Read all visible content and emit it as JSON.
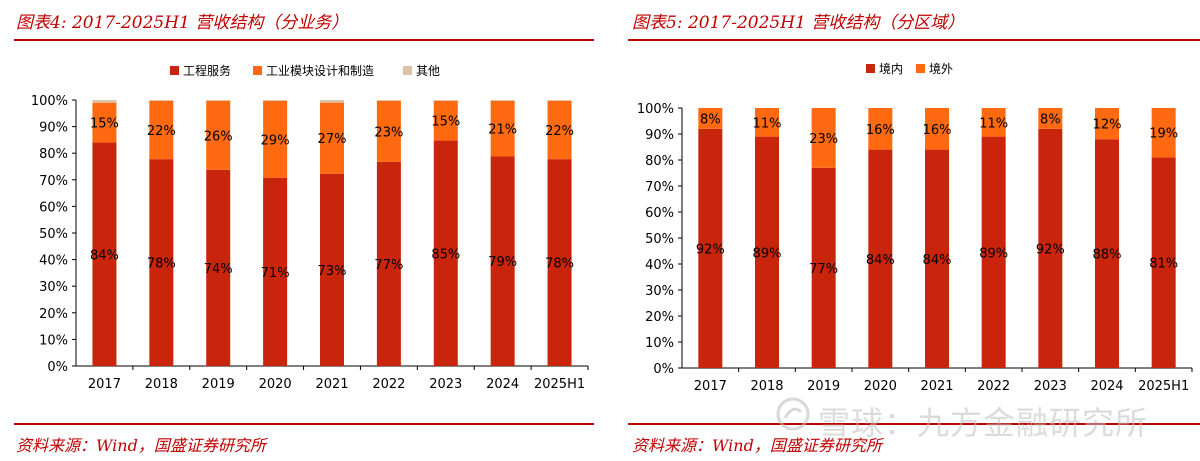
{
  "colors": {
    "accent": "#c00000",
    "dark_red": "#c8250c",
    "orange": "#ff6a10",
    "beige": "#d9c2a8"
  },
  "panels": [
    {
      "title": "图表4:  2017-2025H1 营收结构（分业务）",
      "source": "资料来源：Wind，国盛证券研究所"
    },
    {
      "title": "图表5:  2017-2025H1 营收结构（分区域）",
      "source": "资料来源：Wind，国盛证券研究所"
    }
  ],
  "watermark": {
    "text": "雪球：九方金融研究所",
    "logo": "snowball-logo"
  },
  "chart_data": [
    {
      "type": "bar",
      "stacked": "percent",
      "categories": [
        "2017",
        "2018",
        "2019",
        "2020",
        "2021",
        "2022",
        "2023",
        "2024",
        "2025H1"
      ],
      "yticks": [
        "0%",
        "10%",
        "20%",
        "30%",
        "40%",
        "50%",
        "60%",
        "70%",
        "80%",
        "90%",
        "100%"
      ],
      "ylim": [
        0,
        100
      ],
      "legend_position": "top",
      "series": [
        {
          "name": "工程服务",
          "color": "#c8250c",
          "values": [
            84,
            78,
            74,
            71,
            73,
            77,
            85,
            79,
            78
          ],
          "labels": [
            "84%",
            "78%",
            "74%",
            "71%",
            "73%",
            "77%",
            "85%",
            "79%",
            "78%"
          ]
        },
        {
          "name": "工业模块设计和制造",
          "color": "#ff6a10",
          "values": [
            15,
            22,
            26,
            29,
            27,
            23,
            15,
            21,
            22
          ],
          "labels": [
            "15%",
            "22%",
            "26%",
            "29%",
            "27%",
            "23%",
            "15%",
            "21%",
            "22%"
          ]
        },
        {
          "name": "其他",
          "color": "#d9c2a8",
          "values": [
            1,
            0.3,
            0.3,
            0.3,
            1,
            0.3,
            0.3,
            0.3,
            0.3
          ],
          "labels": []
        }
      ]
    },
    {
      "type": "bar",
      "stacked": "percent",
      "categories": [
        "2017",
        "2018",
        "2019",
        "2020",
        "2021",
        "2022",
        "2023",
        "2024",
        "2025H1"
      ],
      "yticks": [
        "0%",
        "10%",
        "20%",
        "30%",
        "40%",
        "50%",
        "60%",
        "70%",
        "80%",
        "90%",
        "100%"
      ],
      "ylim": [
        0,
        100
      ],
      "legend_position": "top",
      "series": [
        {
          "name": "境内",
          "color": "#c8250c",
          "values": [
            92,
            89,
            77,
            84,
            84,
            89,
            92,
            88,
            81
          ],
          "labels": [
            "92%",
            "89%",
            "77%",
            "84%",
            "84%",
            "89%",
            "92%",
            "88%",
            "81%"
          ]
        },
        {
          "name": "境外",
          "color": "#ff6a10",
          "values": [
            8,
            11,
            23,
            16,
            16,
            11,
            8,
            12,
            19
          ],
          "labels": [
            "8%",
            "11%",
            "23%",
            "16%",
            "16%",
            "11%",
            "8%",
            "12%",
            "19%"
          ]
        }
      ]
    }
  ]
}
